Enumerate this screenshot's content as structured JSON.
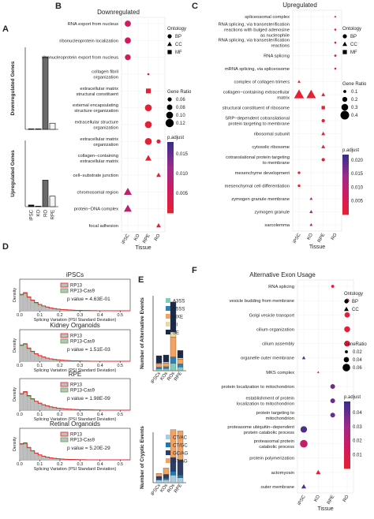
{
  "panel_letters": [
    "A",
    "B",
    "C",
    "D",
    "E",
    "F"
  ],
  "chart_data": [
    {
      "panel": "A",
      "type": "bar",
      "categories": [
        "iPSC",
        "KO",
        "RO",
        "RPE"
      ],
      "series": [
        {
          "name": "Downregulated Genes",
          "values": [
            2,
            6,
            5300,
            450
          ]
        },
        {
          "name": "Upregulated Genes",
          "values": [
            150,
            30,
            2400,
            950
          ]
        }
      ],
      "ylabels": [
        "Downregulated Genes",
        "Upregulated Genes"
      ],
      "colors": {
        "iPSC": "#1a1a1a",
        "KO": "#d9d9d9",
        "RO": "#6b6b6b",
        "RPE": "#f5f5f5"
      },
      "ylim": [
        0,
        6000
      ]
    },
    {
      "panel": "B",
      "type": "scatter",
      "title": "Downregulated",
      "xlabel": "Tissue",
      "x": [
        "iPSC",
        "KO",
        "RPE",
        "RO"
      ],
      "terms": [
        "RNA export from nucleus",
        "ribonucleoprotein localization",
        "ribonucleoprotein export from nucleus",
        "collagen fibril organization",
        "extracellular matrix structural constituent",
        "external encapsulating structure organization",
        "extracellular structure organization",
        "extracellular matrix organization",
        "collagen−containing extracellular matrix",
        "cell−substrate junction",
        "chromosomal region",
        "protein−DNA complex",
        "focal adhesion"
      ],
      "points": [
        {
          "term": 0,
          "x": "iPSC",
          "ratio": 0.09,
          "padj": 0.006,
          "ont": "BP"
        },
        {
          "term": 1,
          "x": "iPSC",
          "ratio": 0.09,
          "padj": 0.006,
          "ont": "BP"
        },
        {
          "term": 2,
          "x": "iPSC",
          "ratio": 0.085,
          "padj": 0.005,
          "ont": "BP"
        },
        {
          "term": 3,
          "x": "RPE",
          "ratio": 0.03,
          "padj": 0.001,
          "ont": "BP"
        },
        {
          "term": 4,
          "x": "RPE",
          "ratio": 0.07,
          "padj": 0.001,
          "ont": "MF"
        },
        {
          "term": 5,
          "x": "RPE",
          "ratio": 0.1,
          "padj": 0.001,
          "ont": "BP"
        },
        {
          "term": 6,
          "x": "RPE",
          "ratio": 0.1,
          "padj": 0.001,
          "ont": "BP"
        },
        {
          "term": 7,
          "x": "RPE",
          "ratio": 0.1,
          "padj": 0.001,
          "ont": "BP"
        },
        {
          "term": 7,
          "x": "RO",
          "ratio": 0.06,
          "padj": 0.001,
          "ont": "BP"
        },
        {
          "term": 8,
          "x": "RPE",
          "ratio": 0.08,
          "padj": 0.001,
          "ont": "CC"
        },
        {
          "term": 9,
          "x": "RO",
          "ratio": 0.06,
          "padj": 0.001,
          "ont": "CC"
        },
        {
          "term": 10,
          "x": "iPSC",
          "ratio": 0.1,
          "padj": 0.008,
          "ont": "CC"
        },
        {
          "term": 11,
          "x": "iPSC",
          "ratio": 0.1,
          "padj": 0.008,
          "ont": "CC"
        },
        {
          "term": 12,
          "x": "RO",
          "ratio": 0.06,
          "padj": 0.001,
          "ont": "CC"
        }
      ],
      "legend": {
        "ontology": [
          "BP",
          "CC",
          "MF"
        ],
        "ratio_title": "Gene Ratio",
        "ratio_ticks": [
          "0.06",
          "0.08",
          "0.10",
          "0.12"
        ],
        "padj_title": "p.adjust",
        "padj_ticks": [
          "0.005",
          "0.010",
          "0.015"
        ],
        "padj_range": [
          0,
          0.018
        ]
      }
    },
    {
      "panel": "C",
      "type": "scatter",
      "title": "Upregulated",
      "xlabel": "Tissue",
      "x": [
        "iPSC",
        "KO",
        "RPE",
        "RO"
      ],
      "terms": [
        "spliceosomal complex",
        "RNA splicing, via transesterification reactions with bulged adenosine as nucleophile",
        "RNA splicing, via transesterification reactions",
        "RNA splicing",
        "mRNA splicing, via spliceosome",
        "complex of collagen trimers",
        "collagen−containing extracellular matrix",
        "structural constituent of ribosome",
        "SRP−dependent cotranslational protein targeting to membrane",
        "ribosomal subunit",
        "cytosolic ribosome",
        "cotranslational protein targeting to membrane",
        "mesenchyme development",
        "mesenchymal cell differentiation",
        "zymogen granule membrane",
        "zymogen granule",
        "sarcolemma"
      ],
      "points": [
        {
          "term": 0,
          "x": "RO",
          "ratio": 0.03,
          "padj": 0.002,
          "ont": "CC"
        },
        {
          "term": 1,
          "x": "RO",
          "ratio": 0.05,
          "padj": 0.002,
          "ont": "BP"
        },
        {
          "term": 2,
          "x": "RO",
          "ratio": 0.05,
          "padj": 0.002,
          "ont": "BP"
        },
        {
          "term": 3,
          "x": "RO",
          "ratio": 0.06,
          "padj": 0.002,
          "ont": "BP"
        },
        {
          "term": 4,
          "x": "RO",
          "ratio": 0.05,
          "padj": 0.002,
          "ont": "BP"
        },
        {
          "term": 5,
          "x": "iPSC",
          "ratio": 0.08,
          "padj": 0.001,
          "ont": "CC"
        },
        {
          "term": 6,
          "x": "iPSC",
          "ratio": 0.4,
          "padj": 0.001,
          "ont": "CC"
        },
        {
          "term": 6,
          "x": "KO",
          "ratio": 0.38,
          "padj": 0.001,
          "ont": "CC"
        },
        {
          "term": 6,
          "x": "RPE",
          "ratio": 0.12,
          "padj": 0.001,
          "ont": "CC"
        },
        {
          "term": 7,
          "x": "RPE",
          "ratio": 0.12,
          "padj": 0.001,
          "ont": "MF"
        },
        {
          "term": 8,
          "x": "RPE",
          "ratio": 0.12,
          "padj": 0.001,
          "ont": "BP"
        },
        {
          "term": 9,
          "x": "RPE",
          "ratio": 0.12,
          "padj": 0.001,
          "ont": "CC"
        },
        {
          "term": 10,
          "x": "RPE",
          "ratio": 0.12,
          "padj": 0.001,
          "ont": "CC"
        },
        {
          "term": 11,
          "x": "RPE",
          "ratio": 0.12,
          "padj": 0.001,
          "ont": "BP"
        },
        {
          "term": 12,
          "x": "iPSC",
          "ratio": 0.08,
          "padj": 0.001,
          "ont": "BP"
        },
        {
          "term": 13,
          "x": "iPSC",
          "ratio": 0.08,
          "padj": 0.001,
          "ont": "BP"
        },
        {
          "term": 14,
          "x": "KO",
          "ratio": 0.08,
          "padj": 0.012,
          "ont": "CC"
        },
        {
          "term": 15,
          "x": "KO",
          "ratio": 0.1,
          "padj": 0.014,
          "ont": "CC"
        },
        {
          "term": 16,
          "x": "KO",
          "ratio": 0.08,
          "padj": 0.012,
          "ont": "CC"
        }
      ],
      "legend": {
        "ontology": [
          "BP",
          "CC",
          "MF"
        ],
        "ratio_title": "Gene Ratio",
        "ratio_ticks": [
          "0.1",
          "0.2",
          "0.3",
          "0.4"
        ],
        "padj_title": "p.adjust",
        "padj_ticks": [
          "0.005",
          "0.010",
          "0.015",
          "0.020"
        ],
        "padj_range": [
          0,
          0.022
        ]
      }
    },
    {
      "panel": "D",
      "type": "area",
      "xlabel": "Splicing Variation (PSI Standard Deviation)",
      "ylabel": "Density",
      "xticks": [
        "0.0",
        "0.1",
        "0.2",
        "0.3",
        "0.4",
        "0.5"
      ],
      "xlim": [
        0,
        0.55
      ],
      "legend": [
        "RP13",
        "RP13-Cas9"
      ],
      "colors": {
        "RP13": "#e8212a",
        "RP13-Cas9": "#4daf4a",
        "fill": "#bfbfbf"
      },
      "subpanels": [
        {
          "title": "iPSCs",
          "pvalue": "p value = 4.63E-01",
          "decay": 0.07
        },
        {
          "title": "Kidney Organoids",
          "pvalue": "p value = 1.51E-03",
          "decay": 0.065
        },
        {
          "title": "RPE",
          "pvalue": "p value = 1.98E-09",
          "decay": 0.075
        },
        {
          "title": "Retinal Organoids",
          "pvalue": "p value = 5.20E-29",
          "decay": 0.06
        }
      ]
    },
    {
      "panel": "E",
      "type": "bar",
      "categories": [
        "iPSCs",
        "KOs",
        "ROs",
        "RPE"
      ],
      "top": {
        "ylabel": "Number of Alternative Events",
        "ylim": [
          0,
          3000
        ],
        "series": [
          {
            "name": "A3SS",
            "values": [
              80,
              90,
              300,
              150
            ]
          },
          {
            "name": "A5SS",
            "values": [
              60,
              70,
              250,
              120
            ]
          },
          {
            "name": "MXE",
            "values": [
              120,
              140,
              800,
              200
            ]
          },
          {
            "name": "RI",
            "values": [
              40,
              50,
              200,
              40
            ]
          },
          {
            "name": "SE",
            "values": [
              300,
              280,
              1200,
              300
            ]
          }
        ],
        "colors": {
          "A3SS": "#7fcdbb",
          "A5SS": "#2c7fb8",
          "MXE": "#f4a261",
          "RI": "#e9d8a6",
          "SE": "#1b2a49"
        }
      },
      "bottom": {
        "ylabel": "Number of Cryptic Events",
        "ylim": [
          0,
          200
        ],
        "series": [
          {
            "name": "CT/AC",
            "values": [
              10,
              12,
              30,
              20
            ]
          },
          {
            "name": "CT/GC",
            "values": [
              5,
              6,
              15,
              10
            ]
          },
          {
            "name": "GC/AG",
            "values": [
              10,
              15,
              55,
              60
            ]
          },
          {
            "name": "GT/AG",
            "values": [
              12,
              25,
              110,
              115
            ]
          }
        ],
        "colors": {
          "CT/AC": "#a6cee3",
          "CT/GC": "#1f78b4",
          "GC/AG": "#2c3e66",
          "GT/AG": "#f4a261"
        }
      }
    },
    {
      "panel": "F",
      "type": "scatter",
      "title": "Alternative Exon Usage",
      "xlabel": "Tissue",
      "x": [
        "iPSC",
        "KO",
        "RPE",
        "RO"
      ],
      "terms": [
        "RNA splicing",
        "vesicle budding from membrane",
        "Golgi vesicle transport",
        "cilium organization",
        "cilium assembly",
        "organelle outer membrane",
        "MKS complex",
        "protein localization to mitochondrion",
        "establishment of protein localization to mitochondrion",
        "protein targeting to mitochondrion",
        "proteasome ubiquitin−dependent protein catabolic process",
        "proteasomal protein catabolic process",
        "protein polymerization",
        "actomyosin",
        "outer membrane"
      ],
      "points": [
        {
          "term": 0,
          "x": "RPE",
          "ratio": 0.02,
          "padj": 0.005,
          "ont": "BP"
        },
        {
          "term": 1,
          "x": "RO",
          "ratio": 0.03,
          "padj": 0.005,
          "ont": "BP"
        },
        {
          "term": 2,
          "x": "RO",
          "ratio": 0.04,
          "padj": 0.005,
          "ont": "BP"
        },
        {
          "term": 3,
          "x": "RO",
          "ratio": 0.045,
          "padj": 0.005,
          "ont": "BP"
        },
        {
          "term": 4,
          "x": "RO",
          "ratio": 0.045,
          "padj": 0.005,
          "ont": "BP"
        },
        {
          "term": 5,
          "x": "iPSC",
          "ratio": 0.02,
          "padj": 0.045,
          "ont": "CC"
        },
        {
          "term": 6,
          "x": "KO",
          "ratio": 0.01,
          "padj": 0.03,
          "ont": "CC"
        },
        {
          "term": 7,
          "x": "RPE",
          "ratio": 0.035,
          "padj": 0.04,
          "ont": "BP"
        },
        {
          "term": 8,
          "x": "RPE",
          "ratio": 0.035,
          "padj": 0.04,
          "ont": "BP"
        },
        {
          "term": 9,
          "x": "RPE",
          "ratio": 0.035,
          "padj": 0.04,
          "ont": "BP"
        },
        {
          "term": 10,
          "x": "iPSC",
          "ratio": 0.05,
          "padj": 0.045,
          "ont": "BP"
        },
        {
          "term": 11,
          "x": "iPSC",
          "ratio": 0.06,
          "padj": 0.02,
          "ont": "BP"
        },
        {
          "term": 12,
          "x": "RO",
          "ratio": 0.03,
          "padj": 0.015,
          "ont": "BP"
        },
        {
          "term": 13,
          "x": "KO",
          "ratio": 0.03,
          "padj": 0.005,
          "ont": "CC"
        },
        {
          "term": 14,
          "x": "iPSC",
          "ratio": 0.03,
          "padj": 0.045,
          "ont": "CC"
        }
      ],
      "legend": {
        "ontology": [
          "BP",
          "CC"
        ],
        "ratio_title": "GeneRatio",
        "ratio_ticks": [
          "0.02",
          "0.04",
          "0.06"
        ],
        "padj_title": "p.adjust",
        "padj_ticks": [
          "0.01",
          "0.02",
          "0.03",
          "0.04"
        ],
        "padj_range": [
          0,
          0.048
        ]
      }
    }
  ]
}
